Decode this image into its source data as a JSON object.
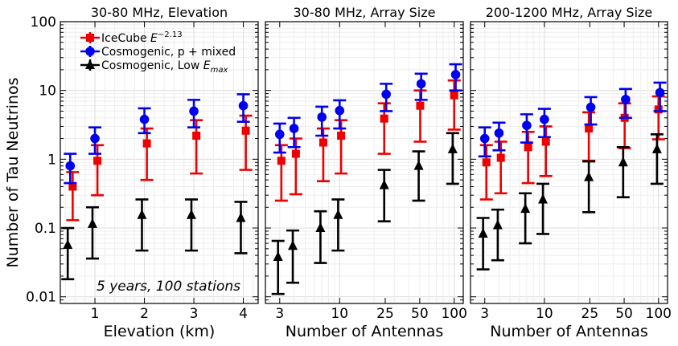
{
  "figure": {
    "ylabel": "Number of Tau Neutrinos",
    "annotation": "5 years, 100 stations",
    "legend": {
      "location": "top-left of first panel",
      "entries": [
        {
          "key": "icecube",
          "label": "IceCube ",
          "sup": "−2.13",
          "marker": "square",
          "color": "#ee0000"
        },
        {
          "key": "cosmo_mixed",
          "label": "Cosmogenic, p + mixed",
          "marker": "circle",
          "color": "#0000ee"
        },
        {
          "key": "cosmo_low",
          "label": "Cosmogenic, Low ",
          "sub": "max",
          "marker": "triangle",
          "color": "#000000"
        }
      ]
    }
  },
  "chart_data": [
    {
      "type": "scatter",
      "title": "30-80 MHz, Elevation",
      "xlabel": "Elevation (km)",
      "xscale": "linear",
      "xlim": [
        0.3,
        4.3
      ],
      "xticks": [
        {
          "v": 1,
          "label": "1"
        },
        {
          "v": 2,
          "label": "2"
        },
        {
          "v": 3,
          "label": "3"
        },
        {
          "v": 4,
          "label": "4"
        }
      ],
      "yscale": "log",
      "ylim": [
        0.008,
        100
      ],
      "yticks": [
        {
          "v": 0.01,
          "label": "0.01"
        },
        {
          "v": 0.1,
          "label": "0.1"
        },
        {
          "v": 1,
          "label": "1"
        },
        {
          "v": 10,
          "label": "10"
        },
        {
          "v": 100,
          "label": "100"
        }
      ],
      "series": [
        {
          "name": "icecube",
          "x": [
            0.55,
            1.05,
            2.05,
            3.05,
            4.05
          ],
          "y": [
            0.4,
            0.95,
            1.7,
            2.2,
            2.6
          ],
          "lo": [
            0.13,
            0.3,
            0.5,
            0.62,
            0.7
          ],
          "hi": [
            0.65,
            1.6,
            2.8,
            3.7,
            4.3
          ]
        },
        {
          "name": "cosmo_mixed",
          "x": [
            0.5,
            1.0,
            2.0,
            3.0,
            4.0
          ],
          "y": [
            0.8,
            2.0,
            3.8,
            5.0,
            6.0
          ],
          "lo": [
            0.45,
            1.2,
            2.4,
            2.9,
            3.5
          ],
          "hi": [
            1.2,
            2.9,
            5.5,
            7.3,
            8.8
          ]
        },
        {
          "name": "cosmo_low",
          "x": [
            0.45,
            0.95,
            1.95,
            2.95,
            3.95
          ],
          "y": [
            0.057,
            0.115,
            0.155,
            0.155,
            0.14
          ],
          "lo": [
            0.018,
            0.036,
            0.047,
            0.047,
            0.043
          ],
          "hi": [
            0.1,
            0.2,
            0.26,
            0.26,
            0.24
          ]
        }
      ]
    },
    {
      "type": "scatter",
      "title": "30-80 MHz, Array Size",
      "xlabel": "Number of Antennas",
      "xscale": "log",
      "xlim": [
        2.25,
        120
      ],
      "xticks": [
        {
          "v": 3,
          "label": "3"
        },
        {
          "v": 10,
          "label": "10"
        },
        {
          "v": 25,
          "label": "25"
        },
        {
          "v": 50,
          "label": "50"
        },
        {
          "v": 100,
          "label": "100"
        }
      ],
      "yscale": "log",
      "ylim": [
        0.008,
        100
      ],
      "yticks": [],
      "series": [
        {
          "name": "icecube",
          "x": [
            3.1,
            4.15,
            7.2,
            10.3,
            24.5,
            50.5,
            100
          ],
          "y": [
            0.95,
            1.2,
            1.75,
            2.2,
            3.9,
            6.0,
            8.5
          ],
          "lo": [
            0.25,
            0.31,
            0.48,
            0.62,
            1.2,
            1.8,
            2.7
          ],
          "hi": [
            1.6,
            2.0,
            2.8,
            3.7,
            6.5,
            10.0,
            14.0
          ]
        },
        {
          "name": "cosmo_mixed",
          "x": [
            3.0,
            4.0,
            7.0,
            10.0,
            25.5,
            51.5,
            103
          ],
          "y": [
            2.3,
            2.8,
            4.1,
            5.1,
            8.8,
            12.5,
            17.0
          ],
          "lo": [
            1.25,
            1.5,
            2.2,
            2.8,
            5.0,
            7.3,
            10.0
          ],
          "hi": [
            3.3,
            4.0,
            5.8,
            7.2,
            12.5,
            17.5,
            24.0
          ]
        },
        {
          "name": "cosmo_low",
          "x": [
            2.9,
            3.9,
            6.8,
            9.7,
            24.5,
            49,
            97
          ],
          "y": [
            0.038,
            0.055,
            0.1,
            0.155,
            0.42,
            0.8,
            1.4
          ],
          "lo": [
            0.011,
            0.016,
            0.031,
            0.047,
            0.125,
            0.25,
            0.44
          ],
          "hi": [
            0.065,
            0.092,
            0.175,
            0.26,
            0.7,
            1.3,
            2.4
          ]
        }
      ]
    },
    {
      "type": "scatter",
      "title": "200-1200 MHz, Array Size",
      "xlabel": "Number of Antennas",
      "xscale": "log",
      "xlim": [
        2.25,
        120
      ],
      "xticks": [
        {
          "v": 3,
          "label": "3"
        },
        {
          "v": 10,
          "label": "10"
        },
        {
          "v": 25,
          "label": "25"
        },
        {
          "v": 50,
          "label": "50"
        },
        {
          "v": 100,
          "label": "100"
        }
      ],
      "yscale": "log",
      "ylim": [
        0.008,
        100
      ],
      "yticks": [],
      "series": [
        {
          "name": "icecube",
          "x": [
            3.1,
            4.15,
            7.2,
            10.3,
            24.5,
            50.5,
            100
          ],
          "y": [
            0.9,
            1.05,
            1.5,
            1.8,
            2.8,
            4.0,
            5.3
          ],
          "lo": [
            0.26,
            0.32,
            0.45,
            0.57,
            0.95,
            1.45,
            1.95
          ],
          "hi": [
            1.6,
            1.8,
            2.5,
            3.0,
            4.8,
            6.5,
            8.2
          ]
        },
        {
          "name": "cosmo_mixed",
          "x": [
            3.0,
            4.0,
            7.0,
            10.0,
            25.5,
            51.5,
            103
          ],
          "y": [
            2.0,
            2.4,
            3.1,
            3.8,
            5.7,
            7.4,
            9.3
          ],
          "lo": [
            1.1,
            1.35,
            1.75,
            2.1,
            3.2,
            4.0,
            5.0
          ],
          "hi": [
            2.9,
            3.4,
            4.5,
            5.4,
            8.0,
            10.5,
            13.0
          ]
        },
        {
          "name": "cosmo_low",
          "x": [
            2.9,
            3.9,
            6.8,
            9.7,
            24.5,
            49,
            97
          ],
          "y": [
            0.083,
            0.11,
            0.19,
            0.26,
            0.55,
            0.9,
            1.4
          ],
          "lo": [
            0.025,
            0.034,
            0.06,
            0.082,
            0.17,
            0.28,
            0.44
          ],
          "hi": [
            0.14,
            0.185,
            0.32,
            0.44,
            0.93,
            1.5,
            2.3
          ]
        }
      ]
    }
  ]
}
